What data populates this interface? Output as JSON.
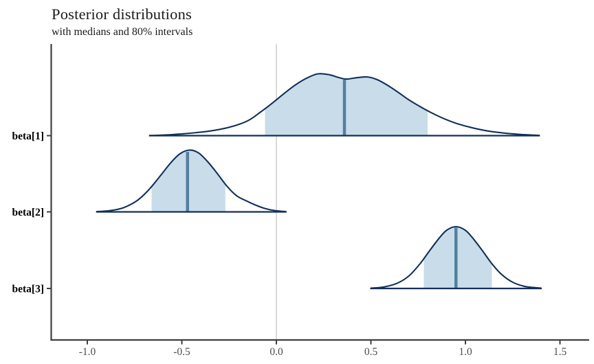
{
  "header": {
    "title": "Posterior distributions",
    "subtitle": "with medians and 80% intervals"
  },
  "chart_data": {
    "type": "area",
    "title": "Posterior distributions",
    "subtitle": "with medians and 80% intervals",
    "xlabel": "",
    "ylabel": "",
    "interval_level": "80%",
    "reference_line_x": 0.0,
    "xlim": [
      -1.2,
      1.68
    ],
    "x_ticks": [
      -1.0,
      -0.5,
      0.0,
      0.5,
      1.0,
      1.5
    ],
    "x_tick_labels": [
      "-1.0",
      "-0.5",
      "0.0",
      "0.5",
      "1.0",
      "1.5"
    ],
    "legend": "none",
    "grid": "off",
    "series": [
      {
        "name": "beta[1]",
        "median": 0.36,
        "interval": [
          -0.06,
          0.8
        ],
        "range": [
          -0.67,
          1.39
        ],
        "density": [
          [
            -0.67,
            0.002
          ],
          [
            -0.58,
            0.012
          ],
          [
            -0.5,
            0.028
          ],
          [
            -0.42,
            0.05
          ],
          [
            -0.34,
            0.08
          ],
          [
            -0.27,
            0.12
          ],
          [
            -0.2,
            0.18
          ],
          [
            -0.14,
            0.26
          ],
          [
            -0.08,
            0.39
          ],
          [
            -0.02,
            0.53
          ],
          [
            0.04,
            0.68
          ],
          [
            0.1,
            0.82
          ],
          [
            0.16,
            0.93
          ],
          [
            0.22,
            1.0
          ],
          [
            0.28,
            0.985
          ],
          [
            0.33,
            0.94
          ],
          [
            0.37,
            0.915
          ],
          [
            0.42,
            0.935
          ],
          [
            0.48,
            0.95
          ],
          [
            0.53,
            0.91
          ],
          [
            0.58,
            0.83
          ],
          [
            0.64,
            0.71
          ],
          [
            0.7,
            0.58
          ],
          [
            0.76,
            0.47
          ],
          [
            0.82,
            0.37
          ],
          [
            0.89,
            0.27
          ],
          [
            0.96,
            0.19
          ],
          [
            1.04,
            0.125
          ],
          [
            1.12,
            0.075
          ],
          [
            1.21,
            0.04
          ],
          [
            1.3,
            0.018
          ],
          [
            1.39,
            0.004
          ]
        ]
      },
      {
        "name": "beta[2]",
        "median": -0.47,
        "interval": [
          -0.66,
          -0.27
        ],
        "range": [
          -0.95,
          0.05
        ],
        "density": [
          [
            -0.95,
            0.004
          ],
          [
            -0.88,
            0.02
          ],
          [
            -0.81,
            0.066
          ],
          [
            -0.74,
            0.175
          ],
          [
            -0.68,
            0.34
          ],
          [
            -0.62,
            0.56
          ],
          [
            -0.56,
            0.79
          ],
          [
            -0.51,
            0.94
          ],
          [
            -0.46,
            1.0
          ],
          [
            -0.41,
            0.95
          ],
          [
            -0.36,
            0.8
          ],
          [
            -0.31,
            0.61
          ],
          [
            -0.26,
            0.41
          ],
          [
            -0.21,
            0.26
          ],
          [
            -0.16,
            0.18
          ],
          [
            -0.11,
            0.11
          ],
          [
            -0.06,
            0.055
          ],
          [
            -0.01,
            0.022
          ],
          [
            0.05,
            0.004
          ]
        ]
      },
      {
        "name": "beta[3]",
        "median": 0.95,
        "interval": [
          0.78,
          1.14
        ],
        "range": [
          0.5,
          1.4
        ],
        "density": [
          [
            0.5,
            0.005
          ],
          [
            0.57,
            0.025
          ],
          [
            0.64,
            0.086
          ],
          [
            0.7,
            0.2
          ],
          [
            0.76,
            0.4
          ],
          [
            0.81,
            0.61
          ],
          [
            0.86,
            0.81
          ],
          [
            0.9,
            0.94
          ],
          [
            0.95,
            1.0
          ],
          [
            1.0,
            0.94
          ],
          [
            1.04,
            0.81
          ],
          [
            1.09,
            0.61
          ],
          [
            1.14,
            0.4
          ],
          [
            1.19,
            0.23
          ],
          [
            1.25,
            0.1
          ],
          [
            1.31,
            0.036
          ],
          [
            1.36,
            0.015
          ],
          [
            1.4,
            0.005
          ]
        ]
      }
    ],
    "colors": {
      "outline": "#122f5a",
      "fill": "#c9dcea",
      "median": "#53809f",
      "reference_line": "#d9d9d9",
      "axis": "#3f3f3f",
      "tick_label": "#4d4d4d",
      "y_label": "#000000",
      "background": "#ffffff"
    }
  }
}
